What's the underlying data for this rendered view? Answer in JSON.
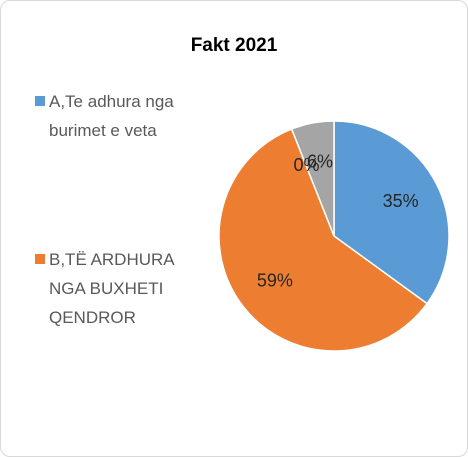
{
  "chart_data": {
    "type": "pie",
    "title": "Fakt 2021",
    "categories": [
      "A,Te adhura nga burimet e veta",
      "B,TË ARDHURA NGA BUXHETI QENDROR",
      null,
      null
    ],
    "values": [
      35,
      59,
      0,
      6
    ],
    "value_labels": [
      "35%",
      "59%",
      "0%",
      "6%"
    ],
    "colors": [
      "#5b9bd5",
      "#ed7d31",
      "#ffc000",
      "#a5a5a5"
    ]
  }
}
